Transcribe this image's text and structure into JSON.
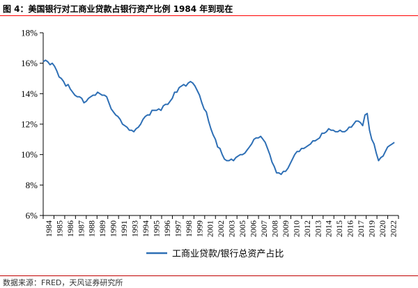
{
  "title": "图 4：美国银行对工商业贷款占银行资产比例 1984 年到现在",
  "source": "数据来源：FRED，天风证券研究所",
  "chart_data": {
    "type": "line",
    "ylim": [
      6,
      18
    ],
    "yticks": [
      6,
      8,
      10,
      12,
      14,
      16,
      18
    ],
    "ytick_labels": [
      "6%",
      "8%",
      "10%",
      "12%",
      "14%",
      "16%",
      "18%"
    ],
    "xlim": [
      1984,
      2023.2
    ],
    "xtick_labels": [
      "1984",
      "1985",
      "1986",
      "1987",
      "1988",
      "1989",
      "1990",
      "1991",
      "1993",
      "1994",
      "1995",
      "1996",
      "1997",
      "1998",
      "1999",
      "2001",
      "2002",
      "2003",
      "2005",
      "2006",
      "2007",
      "2008",
      "2009",
      "2010",
      "2012",
      "2013",
      "2014",
      "2015",
      "2016",
      "2017",
      "2019",
      "2020",
      "2022"
    ],
    "grid": false,
    "legend": "bottom-center",
    "series": [
      {
        "name": "工商业贷款/银行总资产占比",
        "color": "#2e6fb5",
        "points": [
          [
            1984.0,
            16.1
          ],
          [
            1984.25,
            16.2
          ],
          [
            1984.5,
            16.1
          ],
          [
            1984.75,
            15.9
          ],
          [
            1985.0,
            16.0
          ],
          [
            1985.25,
            15.8
          ],
          [
            1985.5,
            15.5
          ],
          [
            1985.75,
            15.1
          ],
          [
            1986.0,
            15.0
          ],
          [
            1986.25,
            14.8
          ],
          [
            1986.5,
            14.5
          ],
          [
            1986.75,
            14.6
          ],
          [
            1987.0,
            14.3
          ],
          [
            1987.25,
            14.1
          ],
          [
            1987.5,
            13.9
          ],
          [
            1987.75,
            13.8
          ],
          [
            1988.0,
            13.8
          ],
          [
            1988.25,
            13.7
          ],
          [
            1988.5,
            13.4
          ],
          [
            1988.75,
            13.5
          ],
          [
            1989.0,
            13.7
          ],
          [
            1989.25,
            13.8
          ],
          [
            1989.5,
            13.9
          ],
          [
            1989.75,
            13.9
          ],
          [
            1990.0,
            14.1
          ],
          [
            1990.25,
            14.0
          ],
          [
            1990.5,
            13.9
          ],
          [
            1990.75,
            13.9
          ],
          [
            1991.0,
            13.8
          ],
          [
            1991.25,
            13.4
          ],
          [
            1991.5,
            13.0
          ],
          [
            1991.75,
            12.8
          ],
          [
            1992.0,
            12.6
          ],
          [
            1992.25,
            12.5
          ],
          [
            1992.5,
            12.3
          ],
          [
            1992.75,
            12.0
          ],
          [
            1993.0,
            11.9
          ],
          [
            1993.25,
            11.8
          ],
          [
            1993.5,
            11.6
          ],
          [
            1993.75,
            11.6
          ],
          [
            1994.0,
            11.5
          ],
          [
            1994.25,
            11.7
          ],
          [
            1994.5,
            11.8
          ],
          [
            1994.75,
            12.0
          ],
          [
            1995.0,
            12.3
          ],
          [
            1995.25,
            12.5
          ],
          [
            1995.5,
            12.6
          ],
          [
            1995.75,
            12.6
          ],
          [
            1996.0,
            12.9
          ],
          [
            1996.25,
            12.9
          ],
          [
            1996.5,
            12.9
          ],
          [
            1996.75,
            13.0
          ],
          [
            1997.0,
            12.9
          ],
          [
            1997.25,
            13.2
          ],
          [
            1997.5,
            13.3
          ],
          [
            1997.75,
            13.3
          ],
          [
            1998.0,
            13.5
          ],
          [
            1998.25,
            13.7
          ],
          [
            1998.5,
            14.1
          ],
          [
            1998.75,
            14.1
          ],
          [
            1999.0,
            14.4
          ],
          [
            1999.25,
            14.5
          ],
          [
            1999.5,
            14.6
          ],
          [
            1999.75,
            14.5
          ],
          [
            2000.0,
            14.7
          ],
          [
            2000.25,
            14.8
          ],
          [
            2000.5,
            14.7
          ],
          [
            2000.75,
            14.5
          ],
          [
            2001.0,
            14.2
          ],
          [
            2001.25,
            13.9
          ],
          [
            2001.5,
            13.4
          ],
          [
            2001.75,
            13.0
          ],
          [
            2002.0,
            12.8
          ],
          [
            2002.25,
            12.2
          ],
          [
            2002.5,
            11.7
          ],
          [
            2002.75,
            11.3
          ],
          [
            2003.0,
            11.0
          ],
          [
            2003.25,
            10.5
          ],
          [
            2003.5,
            10.4
          ],
          [
            2003.75,
            10.0
          ],
          [
            2004.0,
            9.7
          ],
          [
            2004.25,
            9.6
          ],
          [
            2004.5,
            9.6
          ],
          [
            2004.75,
            9.7
          ],
          [
            2005.0,
            9.6
          ],
          [
            2005.25,
            9.8
          ],
          [
            2005.5,
            9.9
          ],
          [
            2005.75,
            10.0
          ],
          [
            2006.0,
            10.0
          ],
          [
            2006.25,
            10.1
          ],
          [
            2006.5,
            10.3
          ],
          [
            2006.75,
            10.5
          ],
          [
            2007.0,
            10.7
          ],
          [
            2007.25,
            11.0
          ],
          [
            2007.5,
            11.1
          ],
          [
            2007.75,
            11.1
          ],
          [
            2008.0,
            11.2
          ],
          [
            2008.25,
            11.0
          ],
          [
            2008.5,
            10.8
          ],
          [
            2008.75,
            10.4
          ],
          [
            2009.0,
            10.0
          ],
          [
            2009.25,
            9.5
          ],
          [
            2009.5,
            9.2
          ],
          [
            2009.75,
            8.8
          ],
          [
            2010.0,
            8.8
          ],
          [
            2010.25,
            8.7
          ],
          [
            2010.5,
            8.9
          ],
          [
            2010.75,
            8.9
          ],
          [
            2011.0,
            9.1
          ],
          [
            2011.25,
            9.4
          ],
          [
            2011.5,
            9.7
          ],
          [
            2011.75,
            10.0
          ],
          [
            2012.0,
            10.2
          ],
          [
            2012.25,
            10.2
          ],
          [
            2012.5,
            10.4
          ],
          [
            2012.75,
            10.4
          ],
          [
            2013.0,
            10.5
          ],
          [
            2013.25,
            10.6
          ],
          [
            2013.5,
            10.7
          ],
          [
            2013.75,
            10.9
          ],
          [
            2014.0,
            10.9
          ],
          [
            2014.25,
            11.0
          ],
          [
            2014.5,
            11.1
          ],
          [
            2014.75,
            11.4
          ],
          [
            2015.0,
            11.4
          ],
          [
            2015.25,
            11.5
          ],
          [
            2015.5,
            11.7
          ],
          [
            2015.75,
            11.6
          ],
          [
            2016.0,
            11.6
          ],
          [
            2016.25,
            11.5
          ],
          [
            2016.5,
            11.5
          ],
          [
            2016.75,
            11.6
          ],
          [
            2017.0,
            11.5
          ],
          [
            2017.25,
            11.5
          ],
          [
            2017.5,
            11.6
          ],
          [
            2017.75,
            11.8
          ],
          [
            2018.0,
            11.8
          ],
          [
            2018.25,
            12.0
          ],
          [
            2018.5,
            12.2
          ],
          [
            2018.75,
            12.2
          ],
          [
            2019.0,
            12.1
          ],
          [
            2019.25,
            11.9
          ],
          [
            2019.5,
            12.6
          ],
          [
            2019.75,
            12.7
          ],
          [
            2020.0,
            11.6
          ],
          [
            2020.25,
            11.0
          ],
          [
            2020.5,
            10.7
          ],
          [
            2020.75,
            10.1
          ],
          [
            2021.0,
            9.6
          ],
          [
            2021.25,
            9.8
          ],
          [
            2021.5,
            9.9
          ],
          [
            2021.75,
            10.2
          ],
          [
            2022.0,
            10.5
          ],
          [
            2022.25,
            10.6
          ],
          [
            2022.5,
            10.7
          ],
          [
            2022.75,
            10.8
          ]
        ]
      }
    ]
  }
}
